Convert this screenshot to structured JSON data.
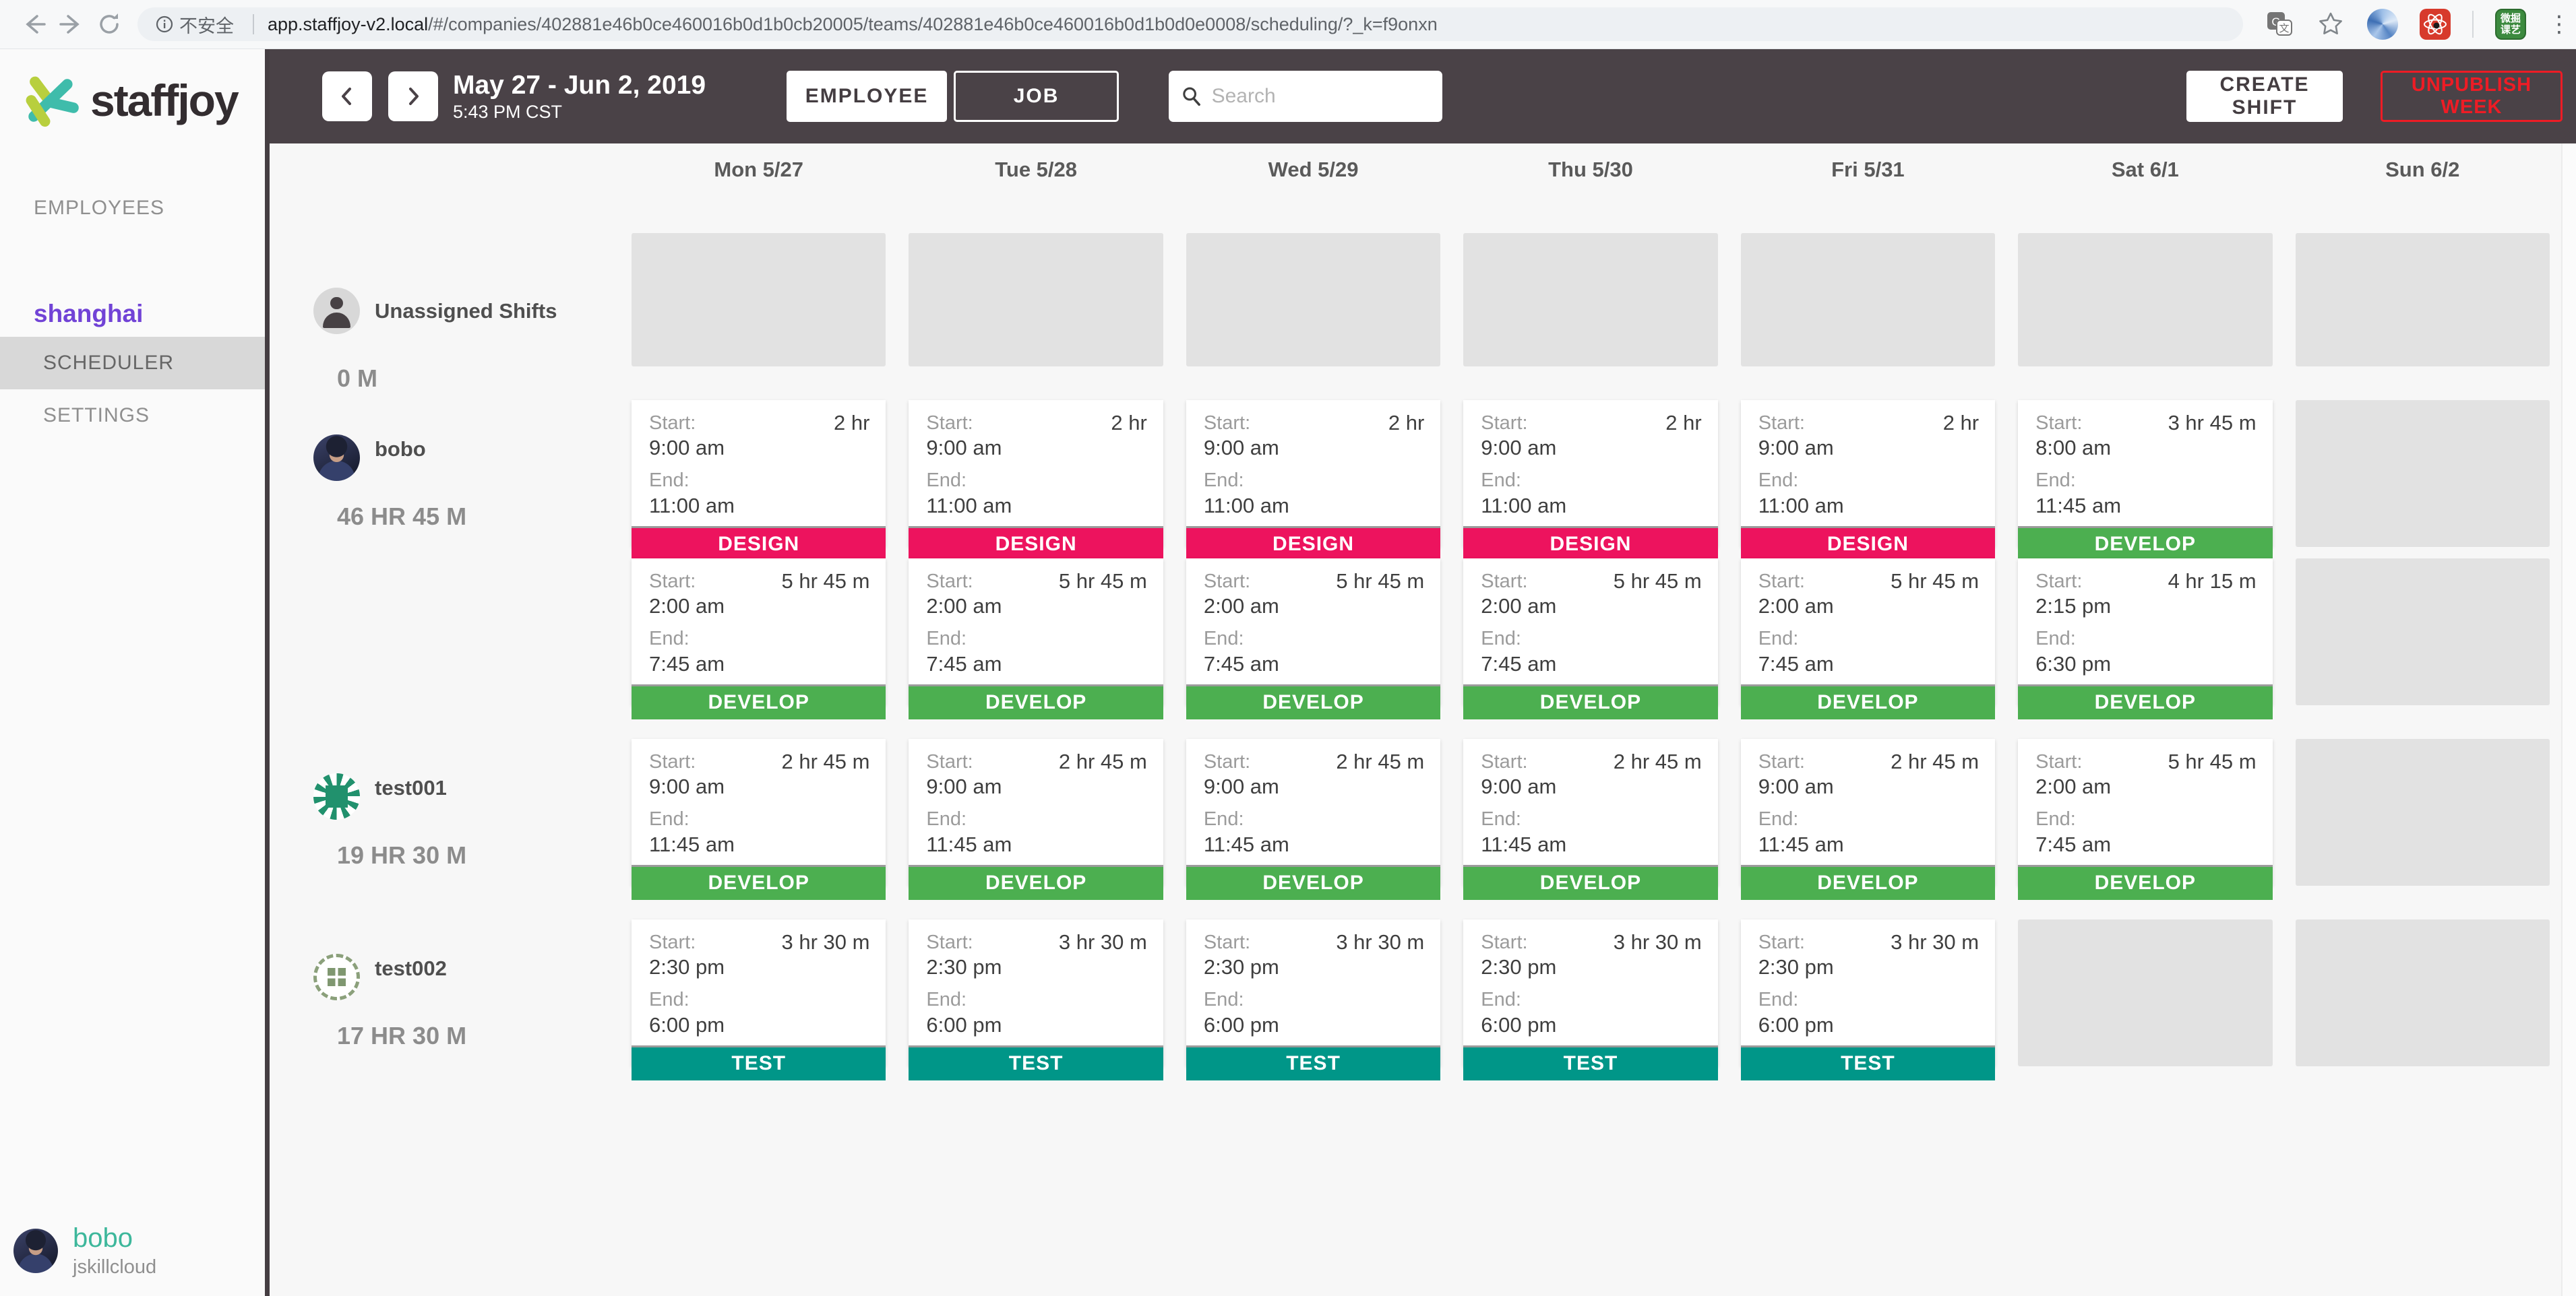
{
  "colors": {
    "topbar": "#4a4247",
    "design": "#ed135e",
    "develop": "#4caf50",
    "test": "#009688",
    "team_purple": "#7143d6",
    "unpublish_red": "#ee1c25",
    "user_teal": "#3db79b"
  },
  "browser": {
    "not_secure": "不安全",
    "url_host": "app.staffjoy-v2.local",
    "url_path": "/#/companies/402881e46b0ce460016b0d1b0cb20005/teams/402881e46b0ce460016b0d1b0d0e0008/scheduling/?_k=f9onxn",
    "extension_green_text": "微掘课艺",
    "menu_dots": "⋮"
  },
  "sidebar": {
    "brand": "staffjoy",
    "employees_label": "EMPLOYEES",
    "team_name": "shanghai",
    "scheduler_label": "SCHEDULER",
    "settings_label": "SETTINGS",
    "user": {
      "name": "bobo",
      "company": "jskillcloud"
    }
  },
  "header": {
    "date_range": "May 27 - Jun 2, 2019",
    "time": "5:43 PM CST",
    "employee_toggle": "EMPLOYEE",
    "job_toggle": "JOB",
    "search_placeholder": "Search",
    "create_shift": "CREATE SHIFT",
    "unpublish_week": "UNPUBLISH WEEK"
  },
  "calendar": {
    "days": [
      "Mon 5/27",
      "Tue 5/28",
      "Wed 5/29",
      "Thu 5/30",
      "Fri 5/31",
      "Sat 6/1",
      "Sun 6/2"
    ]
  },
  "schedule": {
    "card_labels": {
      "start": "Start:",
      "end": "End:"
    },
    "jobs": {
      "DESIGN": "#ed135e",
      "DEVELOP": "#4caf50",
      "TEST": "#009688"
    },
    "rows": [
      {
        "name": "Unassigned Shifts",
        "total": "0 M",
        "avatar": "person",
        "first": true,
        "lines": [
          {
            "variant": "short",
            "cells": [
              {
                "kind": "empty"
              },
              {
                "kind": "empty"
              },
              {
                "kind": "empty"
              },
              {
                "kind": "empty"
              },
              {
                "kind": "empty"
              },
              {
                "kind": "empty"
              },
              {
                "kind": "empty"
              }
            ]
          }
        ]
      },
      {
        "name": "bobo",
        "total": "46 HR 45 M",
        "avatar": "photo",
        "lines": [
          {
            "cells": [
              {
                "kind": "shift",
                "job": "DESIGN",
                "start": "9:00 am",
                "end": "11:00 am",
                "duration": "2 hr"
              },
              {
                "kind": "shift",
                "job": "DESIGN",
                "start": "9:00 am",
                "end": "11:00 am",
                "duration": "2 hr"
              },
              {
                "kind": "shift",
                "job": "DESIGN",
                "start": "9:00 am",
                "end": "11:00 am",
                "duration": "2 hr"
              },
              {
                "kind": "shift",
                "job": "DESIGN",
                "start": "9:00 am",
                "end": "11:00 am",
                "duration": "2 hr"
              },
              {
                "kind": "shift",
                "job": "DESIGN",
                "start": "9:00 am",
                "end": "11:00 am",
                "duration": "2 hr"
              },
              {
                "kind": "shift",
                "job": "DEVELOP",
                "start": "8:00 am",
                "end": "11:45 am",
                "duration": "3 hr 45 m"
              },
              {
                "kind": "empty"
              }
            ]
          },
          {
            "cells": [
              {
                "kind": "shift",
                "job": "DEVELOP",
                "start": "2:00 am",
                "end": "7:45 am",
                "duration": "5 hr 45 m"
              },
              {
                "kind": "shift",
                "job": "DEVELOP",
                "start": "2:00 am",
                "end": "7:45 am",
                "duration": "5 hr 45 m"
              },
              {
                "kind": "shift",
                "job": "DEVELOP",
                "start": "2:00 am",
                "end": "7:45 am",
                "duration": "5 hr 45 m"
              },
              {
                "kind": "shift",
                "job": "DEVELOP",
                "start": "2:00 am",
                "end": "7:45 am",
                "duration": "5 hr 45 m"
              },
              {
                "kind": "shift",
                "job": "DEVELOP",
                "start": "2:00 am",
                "end": "7:45 am",
                "duration": "5 hr 45 m"
              },
              {
                "kind": "shift",
                "job": "DEVELOP",
                "start": "2:15 pm",
                "end": "6:30 pm",
                "duration": "4 hr 15 m"
              },
              {
                "kind": "empty"
              }
            ]
          }
        ]
      },
      {
        "name": "test001",
        "total": "19 HR 30 M",
        "avatar": "pat1",
        "lines": [
          {
            "cells": [
              {
                "kind": "shift",
                "job": "DEVELOP",
                "start": "9:00 am",
                "end": "11:45 am",
                "duration": "2 hr 45 m"
              },
              {
                "kind": "shift",
                "job": "DEVELOP",
                "start": "9:00 am",
                "end": "11:45 am",
                "duration": "2 hr 45 m"
              },
              {
                "kind": "shift",
                "job": "DEVELOP",
                "start": "9:00 am",
                "end": "11:45 am",
                "duration": "2 hr 45 m"
              },
              {
                "kind": "shift",
                "job": "DEVELOP",
                "start": "9:00 am",
                "end": "11:45 am",
                "duration": "2 hr 45 m"
              },
              {
                "kind": "shift",
                "job": "DEVELOP",
                "start": "9:00 am",
                "end": "11:45 am",
                "duration": "2 hr 45 m"
              },
              {
                "kind": "shift",
                "job": "DEVELOP",
                "start": "2:00 am",
                "end": "7:45 am",
                "duration": "5 hr 45 m"
              },
              {
                "kind": "empty"
              }
            ]
          }
        ]
      },
      {
        "name": "test002",
        "total": "17 HR 30 M",
        "avatar": "pat2",
        "lines": [
          {
            "cells": [
              {
                "kind": "shift",
                "job": "TEST",
                "start": "2:30 pm",
                "end": "6:00 pm",
                "duration": "3 hr 30 m"
              },
              {
                "kind": "shift",
                "job": "TEST",
                "start": "2:30 pm",
                "end": "6:00 pm",
                "duration": "3 hr 30 m"
              },
              {
                "kind": "shift",
                "job": "TEST",
                "start": "2:30 pm",
                "end": "6:00 pm",
                "duration": "3 hr 30 m"
              },
              {
                "kind": "shift",
                "job": "TEST",
                "start": "2:30 pm",
                "end": "6:00 pm",
                "duration": "3 hr 30 m"
              },
              {
                "kind": "shift",
                "job": "TEST",
                "start": "2:30 pm",
                "end": "6:00 pm",
                "duration": "3 hr 30 m"
              },
              {
                "kind": "empty"
              },
              {
                "kind": "empty"
              }
            ]
          }
        ]
      }
    ]
  }
}
